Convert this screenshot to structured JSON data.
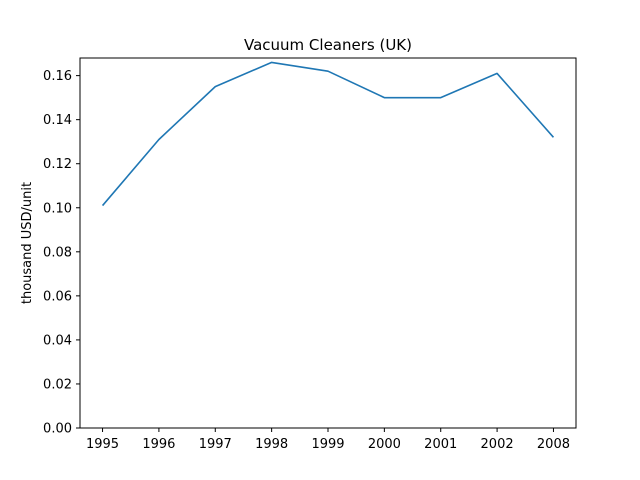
{
  "chart_data": {
    "type": "line",
    "title": "Vacuum Cleaners (UK)",
    "xlabel": "",
    "ylabel": "thousand USD/unit",
    "categories": [
      "1995",
      "1996",
      "1997",
      "1998",
      "1999",
      "2000",
      "2001",
      "2002",
      "2008"
    ],
    "series": [
      {
        "values": [
          0.101,
          0.131,
          0.155,
          0.166,
          0.162,
          0.15,
          0.15,
          0.161,
          0.132
        ],
        "color": "#1f77b4"
      }
    ],
    "ylim": [
      0,
      0.168
    ],
    "yticks": [
      "0.00",
      "0.02",
      "0.04",
      "0.06",
      "0.08",
      "0.10",
      "0.12",
      "0.14",
      "0.16"
    ],
    "grid": false,
    "legend": "none"
  }
}
